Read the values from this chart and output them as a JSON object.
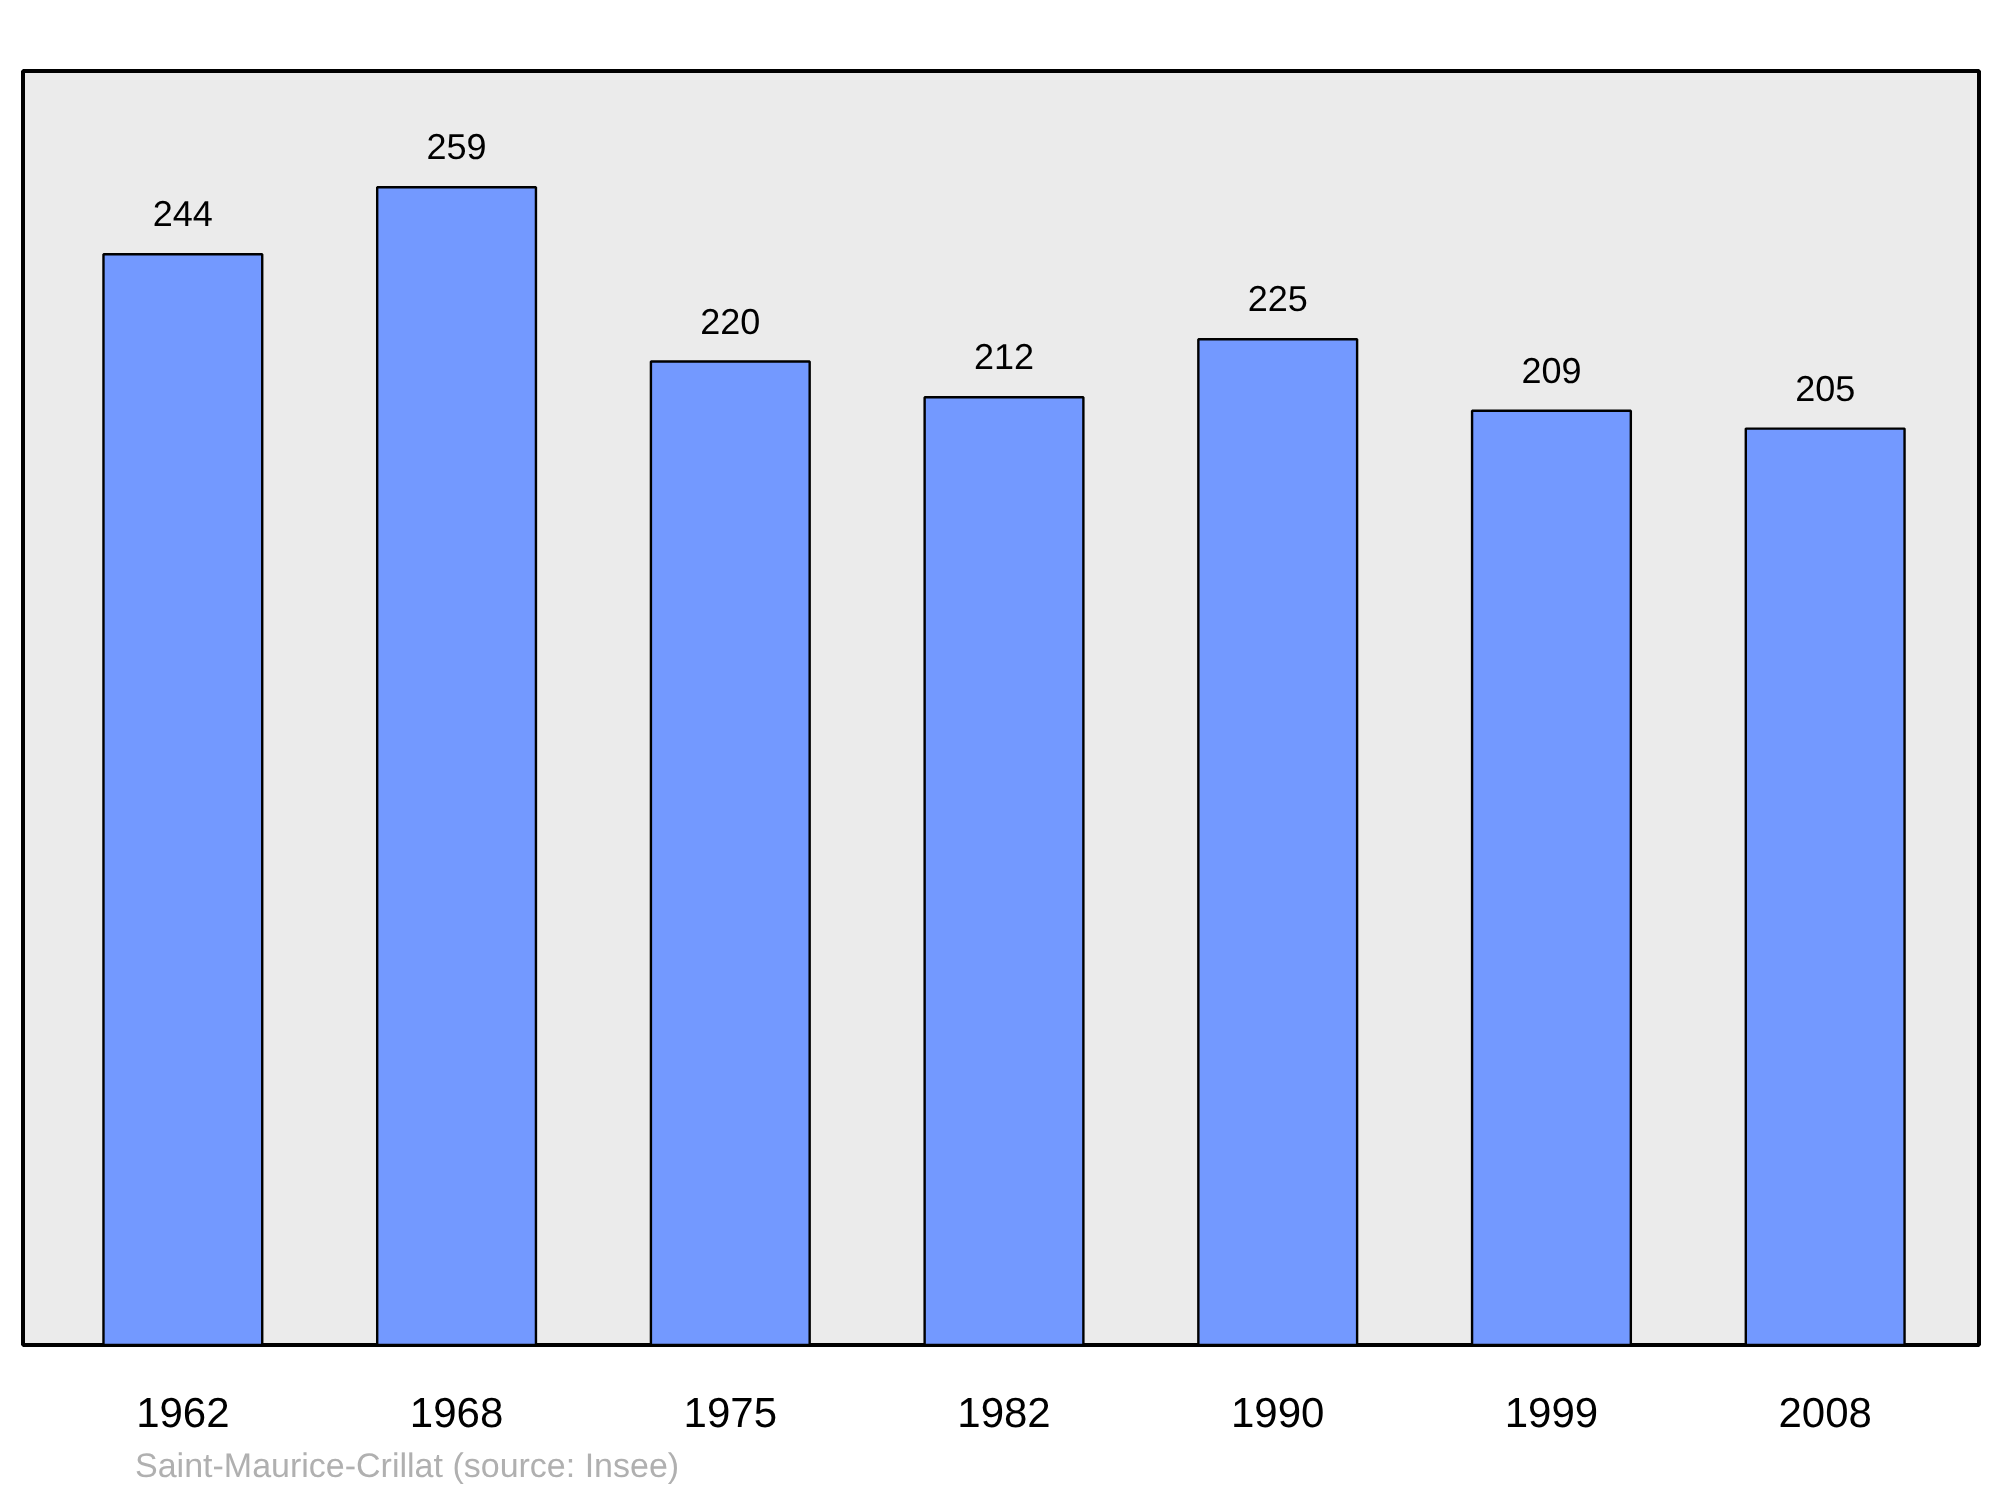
{
  "chart_data": {
    "type": "bar",
    "categories": [
      "1962",
      "1968",
      "1975",
      "1982",
      "1990",
      "1999",
      "2008"
    ],
    "values": [
      244,
      259,
      220,
      212,
      225,
      209,
      205
    ],
    "color": "#7399ff",
    "ylim": [
      0,
      285
    ],
    "data_labels": true,
    "grid": false,
    "tick_labels": "x",
    "annotations": [
      "Saint-Maurice-Crillat    (source: Insee)"
    ]
  }
}
